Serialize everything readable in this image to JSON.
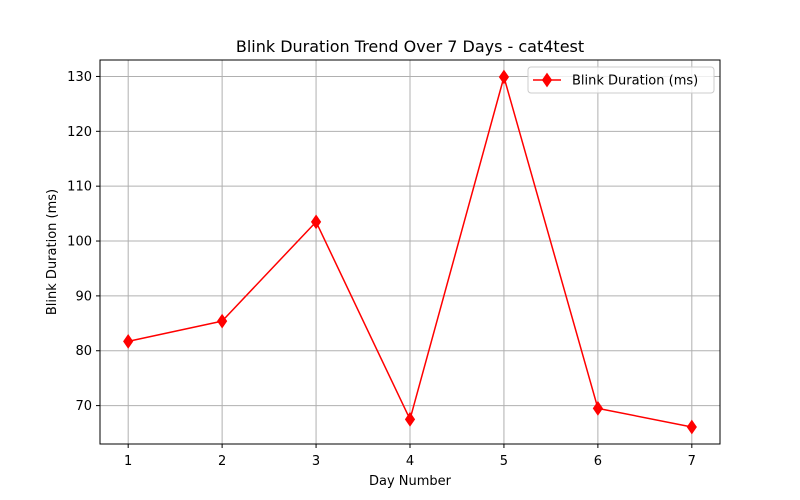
{
  "chart_data": {
    "type": "line",
    "title": "Blink Duration Trend Over 7 Days - cat4test",
    "xlabel": "Day Number",
    "ylabel": "Blink Duration (ms)",
    "x": [
      1,
      2,
      3,
      4,
      5,
      6,
      7
    ],
    "xticks": [
      1,
      2,
      3,
      4,
      5,
      6,
      7
    ],
    "yticks": [
      70,
      80,
      90,
      100,
      110,
      120,
      130
    ],
    "xlim": [
      0.7,
      7.3
    ],
    "ylim": [
      63.0,
      133.0
    ],
    "grid": true,
    "legend_position": "top-right",
    "series": [
      {
        "name": "Blink Duration (ms)",
        "color": "#ff0000",
        "marker": "thin-diamond",
        "values": [
          81.7,
          85.4,
          103.5,
          67.5,
          129.9,
          69.5,
          66.1
        ]
      }
    ]
  }
}
